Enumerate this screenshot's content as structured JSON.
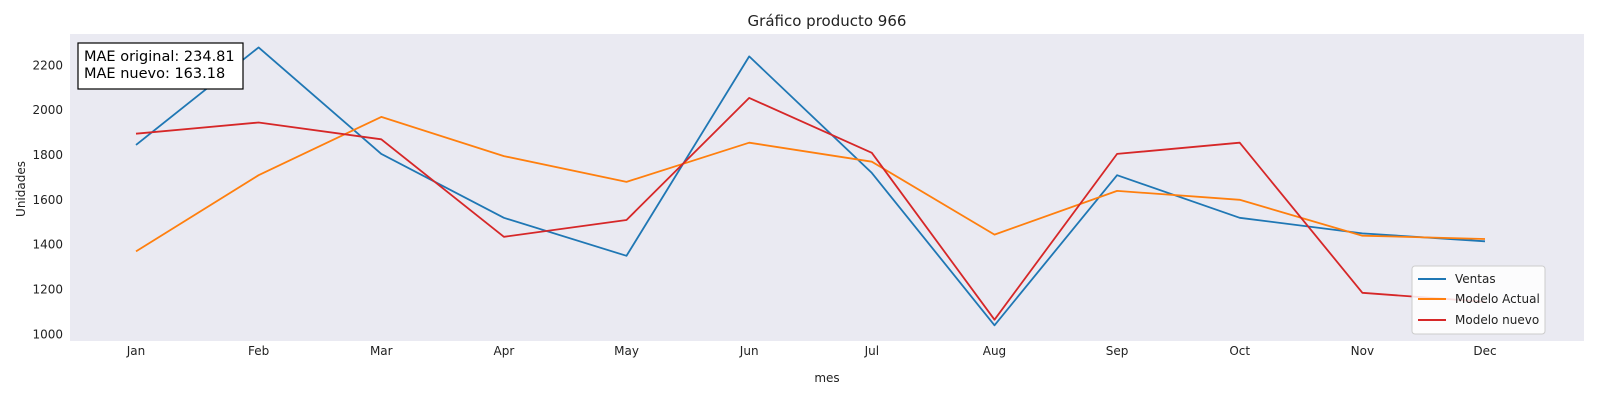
{
  "chart_data": {
    "type": "line",
    "title": "Gráfico producto 966",
    "xlabel": "mes",
    "ylabel": "Unidades",
    "categories": [
      "Jan",
      "Feb",
      "Mar",
      "Apr",
      "May",
      "Jun",
      "Jul",
      "Aug",
      "Sep",
      "Oct",
      "Nov",
      "Dec"
    ],
    "ylim": [
      970,
      2340
    ],
    "yticks": [
      1000,
      1200,
      1400,
      1600,
      1800,
      2000,
      2200
    ],
    "grid": false,
    "legend_position": "bottom-right",
    "series": [
      {
        "name": "Ventas",
        "color": "#1f77b4",
        "values": [
          1845,
          2280,
          1805,
          1520,
          1350,
          2240,
          1720,
          1040,
          1710,
          1520,
          1450,
          1415
        ]
      },
      {
        "name": "Modelo Actual",
        "color": "#ff7f0e",
        "values": [
          1370,
          1710,
          1970,
          1795,
          1680,
          1855,
          1770,
          1445,
          1640,
          1600,
          1440,
          1425
        ]
      },
      {
        "name": "Modelo nuevo",
        "color": "#d62728",
        "values": [
          1895,
          1945,
          1870,
          1435,
          1510,
          2055,
          1810,
          1065,
          1805,
          1855,
          1185,
          1145
        ]
      }
    ],
    "annotation": {
      "lines": [
        "MAE original: 234.81",
        "MAE nuevo: 163.18"
      ]
    }
  }
}
